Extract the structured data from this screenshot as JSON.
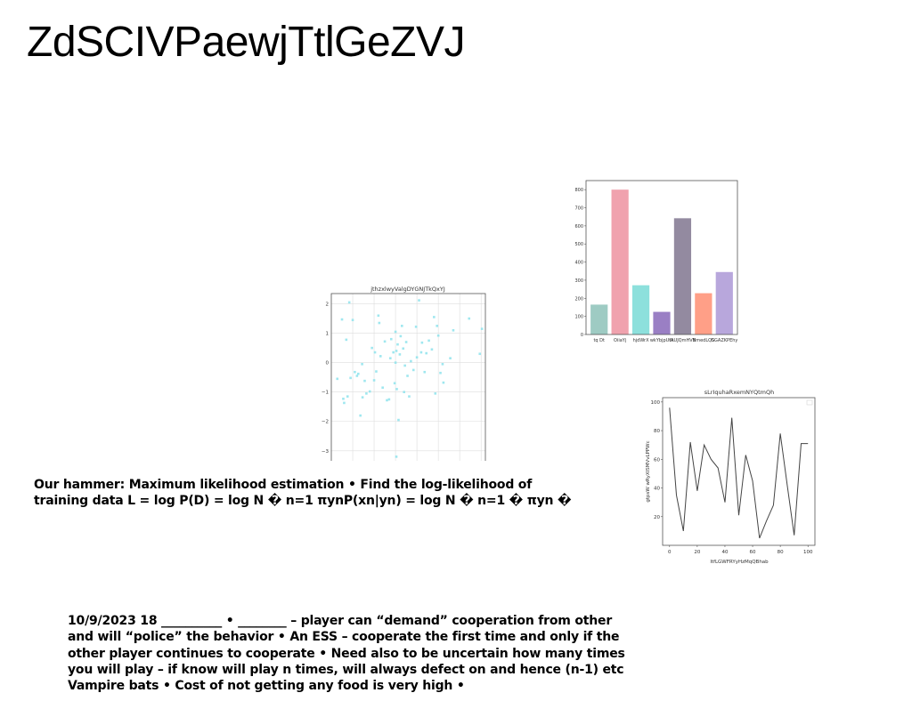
{
  "slide": {
    "title": "ZdSCIVPaewjTtlGeZVJ",
    "paragraph1": "Our hammer: Maximum likelihood estimation • Find the log-likelihood of training data L = log P(D) = log N � n=1 πynP(xn|yn) = log N � n=1 � πyn �",
    "paragraph2": "10/9/2023 18 __________ • ________ – player can “demand” cooperation from other  and will “police” the behavior • An ESS – cooperate the first time and only if the other player continues to cooperate • Need also to be uncertain how many times you will play – if know will play n times, will always defect on and hence (n-1) etc Vampire bats • Cost of not getting any food is very  high •"
  },
  "chart_data": [
    {
      "type": "scatter",
      "title": "jthzxlwyValgDYGNJTkQxYJ",
      "xlabel": "",
      "ylabel": "",
      "xlim": [
        -1.5,
        2.1
      ],
      "ylim": [
        -3.4,
        2.35
      ],
      "xticks": [
        "−1.5",
        "−1.0",
        "−0.5",
        "0.0",
        "0.5",
        "1.0",
        "1.5",
        "2.0"
      ],
      "xtick_values": [
        -1.5,
        -1.0,
        -0.5,
        0.0,
        0.5,
        1.0,
        1.5,
        2.0
      ],
      "yticks": [
        "−3",
        "−2",
        "−1",
        "0",
        "1",
        "2"
      ],
      "ytick_values": [
        -3,
        -2,
        -1,
        0,
        1,
        2
      ],
      "grid": true,
      "color": "#8ee3ec",
      "points": [
        [
          -1.36,
          -0.55
        ],
        [
          -1.25,
          1.47
        ],
        [
          -1.22,
          -1.23
        ],
        [
          -1.2,
          -1.37
        ],
        [
          -1.15,
          0.78
        ],
        [
          -1.12,
          -1.15
        ],
        [
          -1.08,
          2.05
        ],
        [
          -1.05,
          -0.52
        ],
        [
          -1.0,
          1.45
        ],
        [
          -0.95,
          -0.32
        ],
        [
          -0.9,
          -0.45
        ],
        [
          -0.87,
          -0.38
        ],
        [
          -0.82,
          -1.8
        ],
        [
          -0.78,
          -0.05
        ],
        [
          -0.77,
          -1.18
        ],
        [
          -0.72,
          -0.62
        ],
        [
          -0.68,
          -1.05
        ],
        [
          -0.6,
          -0.98
        ],
        [
          -0.55,
          0.5
        ],
        [
          -0.5,
          -0.6
        ],
        [
          -0.45,
          -0.3
        ],
        [
          -0.4,
          1.6
        ],
        [
          -0.38,
          1.35
        ],
        [
          -0.35,
          0.22
        ],
        [
          -0.3,
          -0.85
        ],
        [
          -0.25,
          0.72
        ],
        [
          -0.2,
          -1.28
        ],
        [
          -0.15,
          -1.25
        ],
        [
          -0.12,
          0.15
        ],
        [
          -0.1,
          0.8
        ],
        [
          -0.05,
          0.35
        ],
        [
          -0.02,
          -0.7
        ],
        [
          0.0,
          1.05
        ],
        [
          0.02,
          0.4
        ],
        [
          0.03,
          -0.9
        ],
        [
          0.05,
          0.62
        ],
        [
          0.07,
          -1.95
        ],
        [
          0.1,
          0.28
        ],
        [
          0.12,
          0.9
        ],
        [
          0.15,
          1.25
        ],
        [
          0.18,
          0.48
        ],
        [
          0.2,
          -1.0
        ],
        [
          0.22,
          -0.1
        ],
        [
          0.25,
          0.7
        ],
        [
          0.28,
          -0.45
        ],
        [
          0.32,
          -1.15
        ],
        [
          0.36,
          0.05
        ],
        [
          0.42,
          -0.25
        ],
        [
          0.48,
          1.22
        ],
        [
          0.5,
          0.18
        ],
        [
          0.55,
          2.12
        ],
        [
          0.6,
          0.35
        ],
        [
          0.62,
          0.68
        ],
        [
          0.68,
          -0.32
        ],
        [
          0.72,
          0.32
        ],
        [
          0.78,
          0.75
        ],
        [
          0.85,
          0.45
        ],
        [
          0.9,
          1.55
        ],
        [
          0.93,
          -1.05
        ],
        [
          0.97,
          1.25
        ],
        [
          1.0,
          0.92
        ],
        [
          1.05,
          -0.35
        ],
        [
          1.1,
          -0.05
        ],
        [
          1.12,
          -0.68
        ],
        [
          1.28,
          0.15
        ],
        [
          1.35,
          1.1
        ],
        [
          1.72,
          1.5
        ],
        [
          1.97,
          0.3
        ],
        [
          2.02,
          1.15
        ],
        [
          0.0,
          0.0
        ],
        [
          -0.48,
          0.35
        ],
        [
          0.02,
          -3.2
        ]
      ]
    },
    {
      "type": "bar",
      "title": "",
      "xlabel": "",
      "ylabel": "",
      "categories": [
        "tq Dt",
        "OiiaYj",
        "hjdWrX",
        "wkYbjpUtk",
        "lAUJQmHVB",
        "NmedLQS",
        "GGAZKPEhy"
      ],
      "values": [
        165,
        800,
        272,
        125,
        642,
        228,
        345
      ],
      "colors": [
        "#9ecbc3",
        "#f0a2ae",
        "#8de0dc",
        "#9a7fc4",
        "#938aa0",
        "#ff9f87",
        "#b8a7dc"
      ],
      "ylim": [
        0,
        850
      ],
      "yticks": [
        "0",
        "100",
        "200",
        "300",
        "400",
        "500",
        "600",
        "700",
        "800"
      ],
      "ytick_values": [
        0,
        100,
        200,
        300,
        400,
        500,
        600,
        700,
        800
      ],
      "grid": false
    },
    {
      "type": "line",
      "title": "sLrIquhaRxemNYQtmQh",
      "xlabel": "ltfLGWFRYyHzMqQBhab",
      "ylabel": "gtpsW wRyXISMVvLPPWc",
      "xlim": [
        -5,
        105
      ],
      "ylim": [
        0,
        100
      ],
      "xticks": [
        "0",
        "20",
        "40",
        "60",
        "80",
        "100"
      ],
      "xtick_values": [
        0,
        20,
        40,
        60,
        80,
        100
      ],
      "yticks": [
        "20",
        "40",
        "60",
        "80",
        "100"
      ],
      "ytick_values": [
        20,
        40,
        60,
        80,
        100
      ],
      "grid": false,
      "color": "#444444",
      "x": [
        0,
        5,
        10,
        15,
        20,
        25,
        30,
        35,
        40,
        45,
        50,
        55,
        60,
        65,
        70,
        75,
        80,
        85,
        90,
        95,
        100
      ],
      "y": [
        96,
        35,
        10,
        72,
        38,
        70,
        60,
        54,
        30,
        89,
        21,
        63,
        45,
        5,
        17,
        28,
        78,
        42,
        7,
        71,
        71
      ]
    }
  ]
}
